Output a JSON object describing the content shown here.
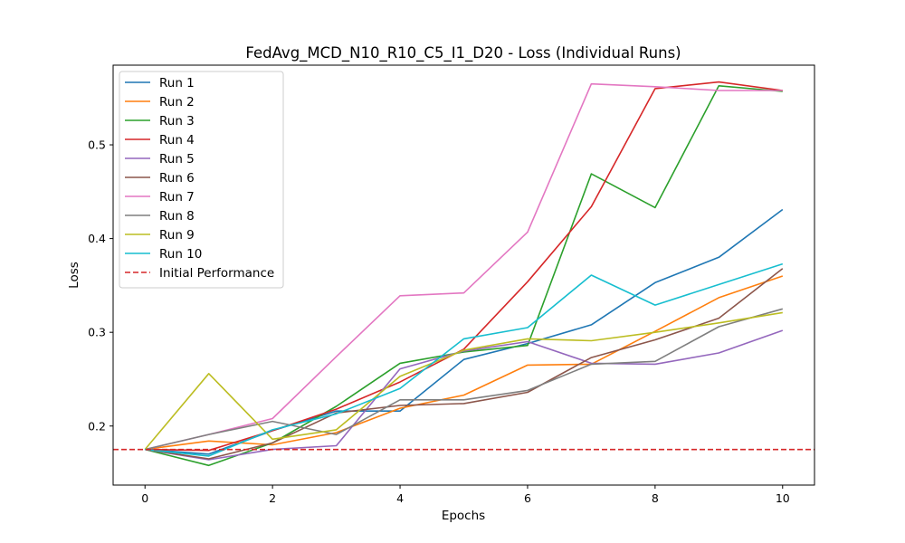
{
  "chart_data": {
    "type": "line",
    "title": "FedAvg_MCD_N10_R10_C5_I1_D20 - Loss (Individual Runs)",
    "xlabel": "Epochs",
    "ylabel": "Loss",
    "xlim": [
      -0.5,
      10.5
    ],
    "ylim": [
      0.137,
      0.585
    ],
    "xticks": [
      0,
      2,
      4,
      6,
      8,
      10
    ],
    "yticks": [
      0.2,
      0.3,
      0.4,
      0.5
    ],
    "ytick_labels": [
      "0.2",
      "0.3",
      "0.4",
      "0.5"
    ],
    "grid": false,
    "legend_position": "upper-left",
    "x": [
      0,
      1,
      2,
      3,
      4,
      5,
      6,
      7,
      8,
      9,
      10
    ],
    "series": [
      {
        "name": "Run 1",
        "color": "#1f77b4",
        "values": [
          0.175,
          0.17,
          0.195,
          0.216,
          0.216,
          0.271,
          0.288,
          0.308,
          0.353,
          0.38,
          0.431
        ]
      },
      {
        "name": "Run 2",
        "color": "#ff7f0e",
        "values": [
          0.175,
          0.184,
          0.18,
          0.193,
          0.219,
          0.233,
          0.265,
          0.266,
          0.301,
          0.337,
          0.36
        ]
      },
      {
        "name": "Run 3",
        "color": "#2ca02c",
        "values": [
          0.175,
          0.158,
          0.182,
          0.221,
          0.267,
          0.279,
          0.286,
          0.469,
          0.433,
          0.563,
          0.557
        ]
      },
      {
        "name": "Run 4",
        "color": "#d62728",
        "values": [
          0.175,
          0.174,
          0.195,
          0.218,
          0.247,
          0.282,
          0.354,
          0.434,
          0.56,
          0.567,
          0.558
        ]
      },
      {
        "name": "Run 5",
        "color": "#9467bd",
        "values": [
          0.175,
          0.164,
          0.175,
          0.179,
          0.261,
          0.28,
          0.29,
          0.267,
          0.266,
          0.278,
          0.302
        ]
      },
      {
        "name": "Run 6",
        "color": "#8c564b",
        "values": [
          0.175,
          0.165,
          0.182,
          0.214,
          0.222,
          0.224,
          0.236,
          0.273,
          0.292,
          0.315,
          0.368
        ]
      },
      {
        "name": "Run 7",
        "color": "#e377c2",
        "values": [
          0.175,
          0.191,
          0.208,
          0.274,
          0.339,
          0.342,
          0.407,
          0.565,
          0.562,
          0.558,
          0.558
        ]
      },
      {
        "name": "Run 8",
        "color": "#7f7f7f",
        "values": [
          0.175,
          0.191,
          0.205,
          0.191,
          0.228,
          0.228,
          0.238,
          0.266,
          0.269,
          0.306,
          0.325
        ]
      },
      {
        "name": "Run 9",
        "color": "#bcbd22",
        "values": [
          0.175,
          0.256,
          0.186,
          0.196,
          0.253,
          0.281,
          0.293,
          0.291,
          0.3,
          0.31,
          0.321
        ]
      },
      {
        "name": "Run 10",
        "color": "#17becf",
        "values": [
          0.175,
          0.168,
          0.196,
          0.213,
          0.24,
          0.293,
          0.305,
          0.361,
          0.329,
          0.351,
          0.373
        ]
      }
    ],
    "reference_line": {
      "name": "Initial Performance",
      "value": 0.175,
      "color": "#d62728",
      "style": "dashed"
    }
  }
}
